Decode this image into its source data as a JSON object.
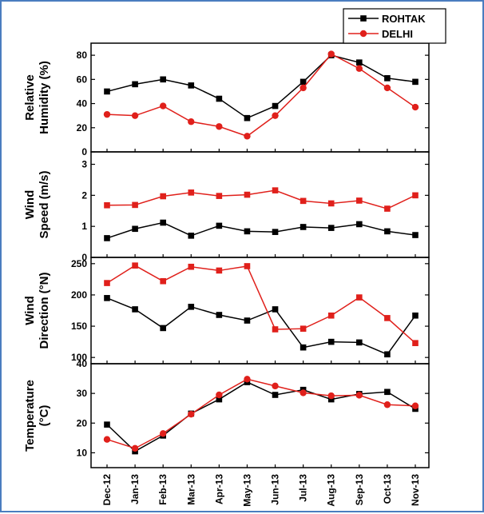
{
  "chart_data": {
    "type": "line",
    "categories": [
      "Dec-12",
      "Jan-13",
      "Feb-13",
      "Mar-13",
      "Apr-13",
      "May-13",
      "Jun-13",
      "Jul-13",
      "Aug-13",
      "Sep-13",
      "Oct-13",
      "Nov-13"
    ],
    "legend": {
      "placement": "top-right",
      "entries": [
        {
          "name": "ROHTAK",
          "color": "#000000",
          "marker": "square"
        },
        {
          "name": "DELHI",
          "color": "#e0201b",
          "marker": "circle"
        }
      ]
    },
    "panels": [
      {
        "id": "humidity",
        "ylabel": [
          "Relative",
          "Humidity (%)"
        ],
        "ylim": [
          0,
          90
        ],
        "yticks": [
          0,
          20,
          40,
          60,
          80
        ],
        "series": [
          {
            "name": "ROHTAK",
            "marker": "square",
            "color": "#000000",
            "values": [
              50,
              56,
              60,
              55,
              44,
              28,
              38,
              58,
              80,
              74,
              61,
              58
            ]
          },
          {
            "name": "DELHI",
            "marker": "circle",
            "color": "#e0201b",
            "values": [
              31,
              30,
              38,
              25,
              21,
              13,
              30,
              53,
              81,
              69,
              53,
              37
            ]
          }
        ]
      },
      {
        "id": "wind-speed",
        "ylabel": [
          "Wind",
          "Speed (m/s)"
        ],
        "ylim": [
          0,
          3.4
        ],
        "yticks": [
          0,
          1,
          2,
          3
        ],
        "series": [
          {
            "name": "ROHTAK",
            "marker": "square",
            "color": "#000000",
            "values": [
              0.62,
              0.92,
              1.12,
              0.7,
              1.02,
              0.84,
              0.82,
              0.98,
              0.95,
              1.07,
              0.84,
              0.72
            ]
          },
          {
            "name": "DELHI",
            "marker": "square",
            "color": "#e0201b",
            "values": [
              1.68,
              1.69,
              1.97,
              2.09,
              1.98,
              2.02,
              2.16,
              1.82,
              1.74,
              1.83,
              1.57,
              2.0
            ]
          }
        ]
      },
      {
        "id": "wind-direction",
        "ylabel": [
          "Wind",
          "Direction (°N)"
        ],
        "ylim": [
          90,
          260
        ],
        "yticks": [
          100,
          150,
          200,
          250
        ],
        "series": [
          {
            "name": "ROHTAK",
            "marker": "square",
            "color": "#000000",
            "values": [
              195,
              177,
              147,
              181,
              168,
              159,
              177,
              116,
              125,
              124,
              105,
              167
            ]
          },
          {
            "name": "DELHI",
            "marker": "square",
            "color": "#e0201b",
            "values": [
              219,
              247,
              222,
              245,
              239,
              246,
              145,
              146,
              167,
              196,
              163,
              123
            ]
          }
        ]
      },
      {
        "id": "temperature",
        "ylabel": [
          "Temperature",
          "(°C)"
        ],
        "ylim": [
          5,
          40
        ],
        "yticks": [
          10,
          20,
          30,
          40
        ],
        "series": [
          {
            "name": "ROHTAK",
            "marker": "square",
            "color": "#000000",
            "values": [
              19.5,
              10.5,
              15.8,
              23.2,
              28.0,
              33.8,
              29.5,
              31.2,
              28.0,
              29.8,
              30.5,
              24.8
            ]
          },
          {
            "name": "DELHI",
            "marker": "circle",
            "color": "#e0201b",
            "values": [
              14.5,
              11.5,
              16.5,
              23.0,
              29.5,
              34.8,
              32.5,
              30.2,
              29.2,
              29.4,
              26.2,
              25.8
            ]
          }
        ]
      }
    ]
  }
}
